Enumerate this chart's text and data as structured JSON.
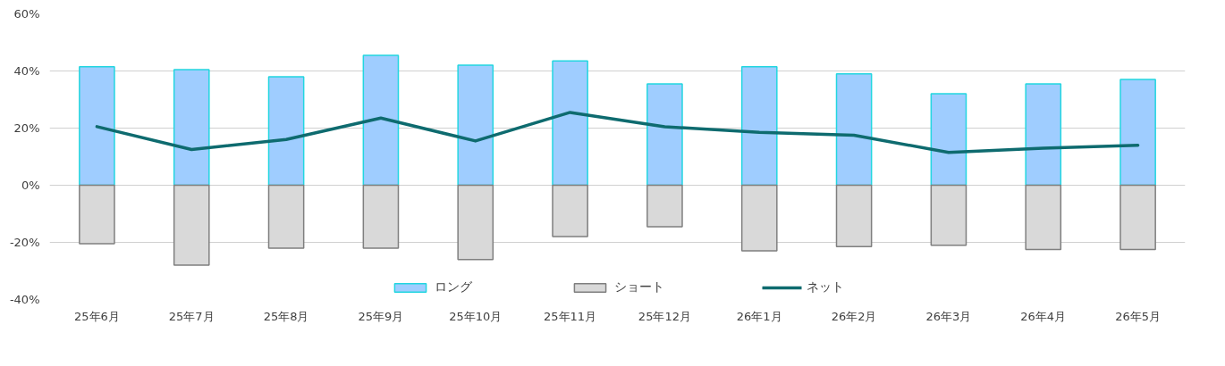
{
  "chart_data": {
    "type": "bar",
    "categories": [
      "25年6月",
      "25年7月",
      "25年8月",
      "25年9月",
      "25年10月",
      "25年11月",
      "25年12月",
      "26年1月",
      "26年2月",
      "26年3月",
      "26年4月",
      "26年5月"
    ],
    "series": [
      {
        "name": "ロング",
        "color": "#9fcdff",
        "values": [
          41.5,
          40.5,
          38,
          45.5,
          42,
          43.5,
          35.5,
          41.5,
          39,
          32,
          35.5,
          37
        ]
      },
      {
        "name": "ショート",
        "color": "#d9d9d9",
        "values": [
          -20.5,
          -28,
          -22,
          -22,
          -26,
          -18,
          -14.5,
          -23,
          -21.5,
          -21,
          -22.5,
          -22.5
        ]
      },
      {
        "name": "ネット",
        "type": "line",
        "color": "#0e6b6f",
        "values": [
          20.5,
          12.5,
          16,
          23.5,
          15.5,
          25.5,
          20.5,
          18.5,
          17.5,
          11.5,
          13,
          14
        ]
      }
    ],
    "ylim": [
      -40,
      60
    ],
    "yticks": [
      {
        "value": -40,
        "label": "-40%"
      },
      {
        "value": -20,
        "label": "-20%"
      },
      {
        "value": 0,
        "label": "0%"
      },
      {
        "value": 20,
        "label": "20%"
      },
      {
        "value": 40,
        "label": "40%"
      },
      {
        "value": 60,
        "label": "60%"
      }
    ],
    "grid": "y",
    "legend": "bottom",
    "stacked": true
  }
}
